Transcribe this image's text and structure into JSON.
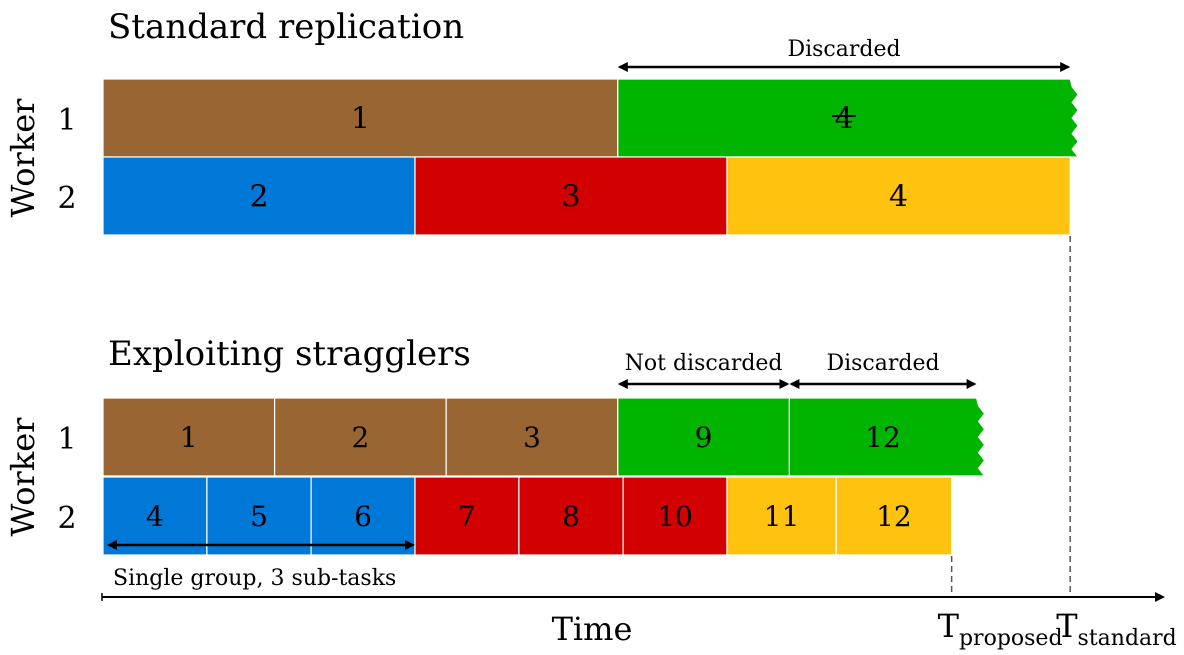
{
  "top": {
    "title": "Standard replication",
    "y_label": "Worker",
    "rows": [
      {
        "worker": "1",
        "blocks": [
          {
            "label": "1",
            "color": "#996633",
            "start": 0,
            "end": 1.65
          },
          {
            "label": "4",
            "color": "#00b400",
            "start": 1.65,
            "end": 3.1,
            "struck": true,
            "ragged": true
          }
        ]
      },
      {
        "worker": "2",
        "blocks": [
          {
            "label": "2",
            "color": "#0078d7",
            "start": 0,
            "end": 1.0
          },
          {
            "label": "3",
            "color": "#d20000",
            "start": 1.0,
            "end": 2.0
          },
          {
            "label": "4",
            "color": "#ffc20e",
            "start": 2.0,
            "end": 3.1
          }
        ]
      }
    ],
    "arrows": [
      {
        "label": "Discarded",
        "start": 1.65,
        "end": 3.1
      }
    ]
  },
  "bottom": {
    "title": "Exploiting stragglers",
    "y_label": "Worker",
    "rows": [
      {
        "worker": "1",
        "blocks": [
          {
            "label": "1",
            "color": "#996633",
            "start": 0,
            "end": 0.55
          },
          {
            "label": "2",
            "color": "#996633",
            "start": 0.55,
            "end": 1.1
          },
          {
            "label": "3",
            "color": "#996633",
            "start": 1.1,
            "end": 1.65
          },
          {
            "label": "9",
            "color": "#00b400",
            "start": 1.65,
            "end": 2.2
          },
          {
            "label": "12",
            "color": "#00b400",
            "start": 2.2,
            "end": 2.8,
            "ragged": true
          }
        ]
      },
      {
        "worker": "2",
        "blocks": [
          {
            "label": "4",
            "color": "#0078d7",
            "start": 0,
            "end": 0.333
          },
          {
            "label": "5",
            "color": "#0078d7",
            "start": 0.333,
            "end": 0.667
          },
          {
            "label": "6",
            "color": "#0078d7",
            "start": 0.667,
            "end": 1.0
          },
          {
            "label": "7",
            "color": "#d20000",
            "start": 1.0,
            "end": 1.333
          },
          {
            "label": "8",
            "color": "#d20000",
            "start": 1.333,
            "end": 1.667
          },
          {
            "label": "10",
            "color": "#d20000",
            "start": 1.667,
            "end": 2.0
          },
          {
            "label": "11",
            "color": "#ffc20e",
            "start": 2.0,
            "end": 2.35
          },
          {
            "label": "12",
            "color": "#ffc20e",
            "start": 2.35,
            "end": 2.72
          }
        ]
      }
    ],
    "arrows": [
      {
        "label": "Not discarded",
        "start": 1.65,
        "end": 2.2
      },
      {
        "label": "Discarded",
        "start": 2.2,
        "end": 2.8
      }
    ],
    "group_arrow": {
      "label": "Single group, 3 sub-tasks",
      "start": 0,
      "end": 1.0
    }
  },
  "time_axis": {
    "label": "Time",
    "markers": [
      {
        "base": "T",
        "sub": "proposed",
        "t": 2.72
      },
      {
        "base": "T",
        "sub": "standard",
        "t": 3.1
      }
    ]
  }
}
